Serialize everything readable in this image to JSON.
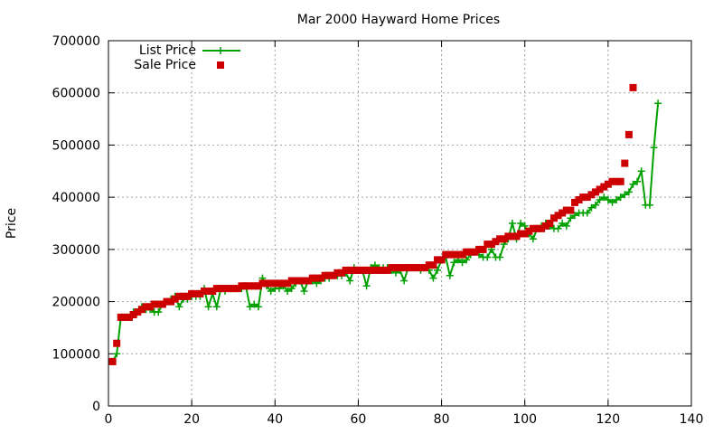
{
  "chart_data": {
    "type": "line",
    "title": "Mar 2000 Hayward Home Prices",
    "xlabel": "",
    "ylabel": "Price",
    "xlim": [
      0,
      140
    ],
    "ylim": [
      0,
      700000
    ],
    "x_ticks": [
      "0",
      "20",
      "40",
      "60",
      "80",
      "100",
      "120",
      "140"
    ],
    "y_ticks": [
      "0",
      "100000",
      "200000",
      "300000",
      "400000",
      "500000",
      "600000",
      "700000"
    ],
    "grid": true,
    "legend_position": "top-left",
    "series": [
      {
        "name": "List Price",
        "color": "#00a000",
        "marker": "plus",
        "values": [
          85000,
          100000,
          170000,
          170000,
          170000,
          180000,
          180000,
          190000,
          185000,
          185000,
          180000,
          180000,
          195000,
          200000,
          205000,
          210000,
          190000,
          205000,
          205000,
          210000,
          210000,
          210000,
          225000,
          190000,
          215000,
          190000,
          225000,
          220000,
          225000,
          225000,
          225000,
          225000,
          230000,
          190000,
          195000,
          190000,
          245000,
          230000,
          220000,
          225000,
          225000,
          230000,
          220000,
          225000,
          235000,
          240000,
          220000,
          240000,
          240000,
          235000,
          240000,
          245000,
          245000,
          250000,
          250000,
          250000,
          255000,
          240000,
          265000,
          260000,
          260000,
          230000,
          265000,
          270000,
          265000,
          265000,
          265000,
          260000,
          255000,
          260000,
          240000,
          265000,
          265000,
          265000,
          260000,
          265000,
          260000,
          245000,
          260000,
          280000,
          285000,
          250000,
          275000,
          280000,
          275000,
          280000,
          290000,
          295000,
          290000,
          285000,
          285000,
          300000,
          285000,
          285000,
          310000,
          320000,
          350000,
          320000,
          350000,
          345000,
          330000,
          320000,
          340000,
          345000,
          350000,
          345000,
          340000,
          340000,
          350000,
          345000,
          360000,
          365000,
          370000,
          370000,
          370000,
          380000,
          385000,
          395000,
          400000,
          395000,
          390000,
          395000,
          400000,
          405000,
          410000,
          425000,
          430000,
          450000,
          385000,
          385000,
          495000,
          580000
        ],
        "x_start": 1
      },
      {
        "name": "Sale Price",
        "color": "#cc0000",
        "marker": "square",
        "values": [
          85000,
          120000,
          170000,
          170000,
          170000,
          175000,
          180000,
          185000,
          190000,
          190000,
          195000,
          195000,
          195000,
          200000,
          200000,
          205000,
          210000,
          210000,
          210000,
          215000,
          215000,
          215000,
          220000,
          220000,
          220000,
          225000,
          225000,
          225000,
          225000,
          225000,
          225000,
          230000,
          230000,
          230000,
          230000,
          230000,
          235000,
          235000,
          235000,
          235000,
          235000,
          235000,
          235000,
          240000,
          240000,
          240000,
          240000,
          240000,
          245000,
          245000,
          245000,
          250000,
          250000,
          250000,
          255000,
          255000,
          260000,
          260000,
          260000,
          260000,
          260000,
          260000,
          260000,
          260000,
          260000,
          260000,
          260000,
          265000,
          265000,
          265000,
          265000,
          265000,
          265000,
          265000,
          265000,
          265000,
          270000,
          270000,
          280000,
          280000,
          290000,
          290000,
          290000,
          290000,
          290000,
          295000,
          295000,
          295000,
          300000,
          300000,
          310000,
          310000,
          315000,
          320000,
          320000,
          325000,
          325000,
          325000,
          330000,
          330000,
          335000,
          340000,
          340000,
          340000,
          345000,
          350000,
          360000,
          365000,
          370000,
          375000,
          375000,
          390000,
          395000,
          400000,
          400000,
          405000,
          410000,
          415000,
          420000,
          425000,
          430000,
          430000,
          430000,
          465000,
          520000,
          610000
        ],
        "x_start": 1
      }
    ]
  }
}
